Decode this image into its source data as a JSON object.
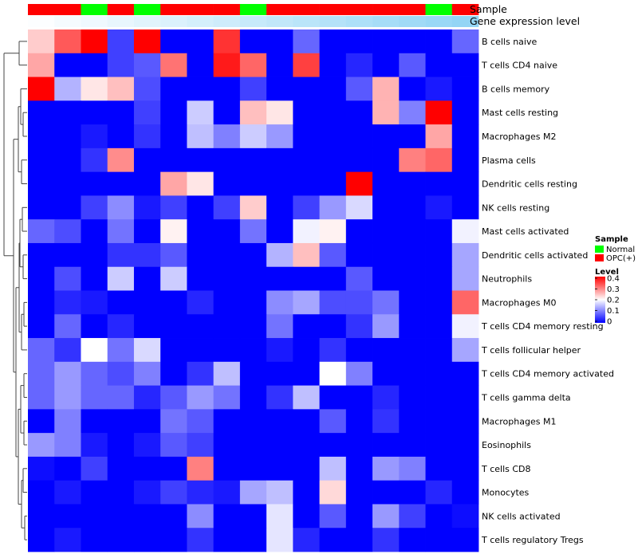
{
  "chart_data": {
    "type": "heatmap",
    "rows": [
      "B cells naive",
      "T cells CD4 naive",
      "B cells memory",
      "Mast cells resting",
      "Macrophages M2",
      "Plasma cells",
      "Dendritic cells resting",
      "NK cells resting",
      "Mast cells activated",
      "Dendritic cells activated",
      "Neutrophils",
      "Macrophages M0",
      "T cells CD4 memory resting",
      "T cells follicular helper",
      "T cells CD4 memory activated",
      "T cells gamma delta",
      "Macrophages M1",
      "Eosinophils",
      "T cells CD8",
      "Monocytes",
      "NK cells activated",
      "T cells regulatory  Tregs"
    ],
    "samples": [
      "OPC(+)",
      "OPC(+)",
      "Normal",
      "OPC(+)",
      "Normal",
      "OPC(+)",
      "OPC(+)",
      "OPC(+)",
      "Normal",
      "OPC(+)",
      "OPC(+)",
      "OPC(+)",
      "OPC(+)",
      "OPC(+)",
      "OPC(+)",
      "Normal",
      "OPC(+)"
    ],
    "gene_expression_level": [
      0.02,
      0.06,
      0.1,
      0.14,
      0.18,
      0.22,
      0.26,
      0.3,
      0.34,
      0.38,
      0.42,
      0.46,
      0.5,
      0.54,
      0.58,
      0.62,
      0.66
    ],
    "values": [
      [
        0.24,
        0.33,
        0.4,
        0.05,
        0.4,
        0,
        0,
        0.36,
        0,
        0,
        0.08,
        0,
        0,
        0,
        0,
        0,
        0.08
      ],
      [
        0.27,
        0,
        0,
        0.05,
        0.07,
        0.31,
        0,
        0.38,
        0.32,
        0,
        0.35,
        0,
        0.03,
        0,
        0.07,
        0,
        0
      ],
      [
        0.4,
        0.14,
        0.22,
        0.25,
        0.06,
        0,
        0,
        0,
        0.05,
        0,
        0,
        0,
        0.07,
        0.26,
        0,
        0.02,
        0
      ],
      [
        0,
        0,
        0,
        0,
        0.05,
        0,
        0.16,
        0,
        0.25,
        0.22,
        0,
        0,
        0,
        0.26,
        0.1,
        0.4,
        0
      ],
      [
        0,
        0,
        0.02,
        0,
        0.04,
        0,
        0.15,
        0.1,
        0.16,
        0.12,
        0,
        0,
        0,
        0,
        0,
        0.27,
        0
      ],
      [
        0,
        0,
        0.04,
        0.29,
        0,
        0,
        0,
        0,
        0,
        0,
        0,
        0,
        0,
        0,
        0.3,
        0.32,
        0
      ],
      [
        0,
        0,
        0,
        0,
        0,
        0.27,
        0.22,
        0,
        0,
        0,
        0,
        0,
        0.4,
        0,
        0,
        0,
        0
      ],
      [
        0,
        0,
        0.05,
        0.11,
        0.02,
        0.05,
        0,
        0.05,
        0.24,
        0,
        0.05,
        0.12,
        0.17,
        0,
        0,
        0.02,
        0
      ],
      [
        0.08,
        0.06,
        0,
        0.09,
        0,
        0.21,
        0,
        0,
        0.09,
        0,
        0.19,
        0.21,
        0,
        0,
        0,
        0,
        0.19
      ],
      [
        0,
        0,
        0,
        0.04,
        0.04,
        0.07,
        0,
        0,
        0,
        0.14,
        0.25,
        0.07,
        0,
        0,
        0,
        0,
        0.13
      ],
      [
        0,
        0.06,
        0,
        0.16,
        0,
        0.16,
        0,
        0,
        0,
        0,
        0,
        0,
        0.07,
        0,
        0,
        0,
        0.13
      ],
      [
        0,
        0.03,
        0.02,
        0,
        0,
        0,
        0.03,
        0,
        0,
        0.11,
        0.13,
        0.06,
        0.06,
        0.09,
        0,
        0,
        0.32
      ],
      [
        0,
        0.08,
        0,
        0.03,
        0,
        0,
        0,
        0,
        0,
        0.09,
        0,
        0,
        0.04,
        0.12,
        0,
        0,
        0.19
      ],
      [
        0.08,
        0.04,
        0.2,
        0.09,
        0.17,
        0,
        0,
        0,
        0,
        0.02,
        0,
        0.04,
        0,
        0,
        0,
        0,
        0.13
      ],
      [
        0.08,
        0.12,
        0.08,
        0.06,
        0.1,
        0,
        0.04,
        0.15,
        0,
        0,
        0,
        0.2,
        0.1,
        0,
        0,
        0,
        0
      ],
      [
        0.08,
        0.12,
        0.08,
        0.08,
        0.03,
        0.07,
        0.12,
        0.09,
        0,
        0.04,
        0.15,
        0,
        0,
        0.03,
        0,
        0,
        0
      ],
      [
        0,
        0.1,
        0,
        0,
        0,
        0.09,
        0.07,
        0,
        0,
        0,
        0,
        0.07,
        0,
        0.04,
        0,
        0,
        0
      ],
      [
        0.12,
        0.1,
        0.02,
        0,
        0.02,
        0.07,
        0.05,
        0,
        0,
        0,
        0,
        0,
        0,
        0,
        0,
        0,
        0
      ],
      [
        0.01,
        0,
        0.05,
        0,
        0,
        0,
        0.3,
        0,
        0,
        0,
        0,
        0.15,
        0,
        0.12,
        0.1,
        0,
        0
      ],
      [
        0,
        0.02,
        0,
        0,
        0.02,
        0.05,
        0.03,
        0.02,
        0.13,
        0.15,
        0,
        0.23,
        0,
        0,
        0,
        0.03,
        0
      ],
      [
        0,
        0,
        0,
        0,
        0,
        0,
        0.11,
        0,
        0,
        0.18,
        0,
        0.07,
        0,
        0.12,
        0.05,
        0,
        0.01
      ],
      [
        0,
        0.02,
        0,
        0,
        0,
        0,
        0.04,
        0,
        0,
        0.18,
        0.03,
        0,
        0,
        0.04,
        0,
        0,
        0
      ]
    ],
    "annotations": {
      "sample_label": "Sample",
      "level_label": "Gene expression level"
    },
    "legend": {
      "sample_title": "Sample",
      "sample_items": [
        {
          "label": "Normal",
          "color": "#00FF00"
        },
        {
          "label": "OPC(+)",
          "color": "#FF0000"
        }
      ],
      "level_title": "Level",
      "level_ticks": [
        "0.4",
        "0.3",
        "0.2",
        "0.1",
        "0"
      ],
      "range": [
        0,
        0.4
      ]
    },
    "colors": {
      "low": "#0000FF",
      "mid": "#FFFFFF",
      "high": "#FF0000",
      "level_low": "#FFFFFF",
      "level_high": "#5BC0F0"
    }
  }
}
